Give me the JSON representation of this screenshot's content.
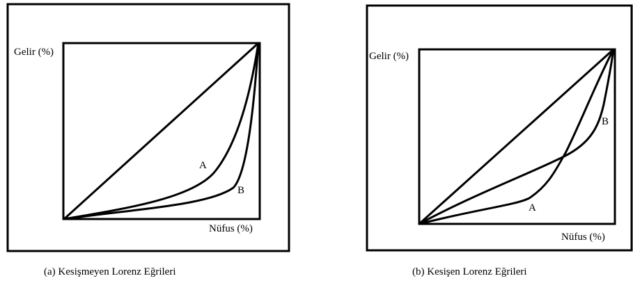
{
  "panel_a": {
    "y_label": "Gelir (%)",
    "x_label": "Nüfus (%)",
    "curve_a_label": "A",
    "curve_b_label": "B",
    "caption": "(a) Kesişmeyen Lorenz Eğrileri"
  },
  "panel_b": {
    "y_label": "Gelir (%)",
    "x_label": "Nüfus (%)",
    "curve_a_label": "A",
    "curve_b_label": "B",
    "caption": "(b) Kesişen Lorenz Eğrileri"
  },
  "colors": {
    "line": "#000000",
    "background": "#ffffff"
  }
}
